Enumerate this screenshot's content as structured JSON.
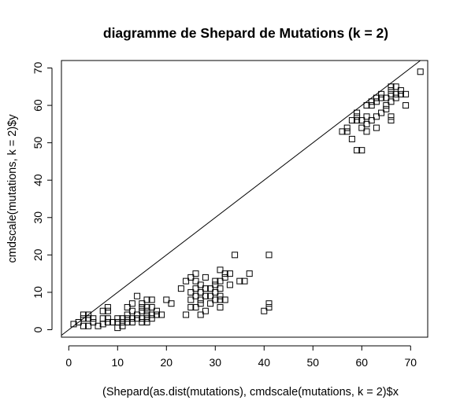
{
  "chart_data": {
    "type": "scatter",
    "title": "diagramme de Shepard de Mutations (k = 2)",
    "xlabel": "(Shepard(as.dist(mutations), cmdscale(mutations, k = 2)$x",
    "ylabel": "cmdscale(mutations, k = 2)$y",
    "xlim": [
      -1.5,
      73.5
    ],
    "ylim": [
      -2,
      72
    ],
    "x_ticks": [
      0,
      10,
      20,
      30,
      40,
      50,
      60,
      70
    ],
    "y_ticks": [
      0,
      10,
      20,
      30,
      40,
      50,
      60,
      70
    ],
    "x_tick_labels": [
      "0",
      "10",
      "20",
      "30",
      "40",
      "50",
      "60",
      "70"
    ],
    "y_tick_labels": [
      "0",
      "10",
      "20",
      "30",
      "40",
      "50",
      "60",
      "70"
    ],
    "grid": false,
    "marker": "open-square",
    "reference_line": {
      "type": "identity",
      "slope": 1,
      "intercept": 0
    },
    "points": [
      [
        1,
        1.5
      ],
      [
        2,
        2
      ],
      [
        3,
        1
      ],
      [
        3,
        3
      ],
      [
        3,
        4
      ],
      [
        4,
        1
      ],
      [
        4,
        3
      ],
      [
        4,
        4
      ],
      [
        5,
        2
      ],
      [
        5,
        3
      ],
      [
        6,
        1
      ],
      [
        7,
        1.5
      ],
      [
        7,
        3
      ],
      [
        7,
        5
      ],
      [
        8,
        2
      ],
      [
        8,
        3
      ],
      [
        8,
        5
      ],
      [
        8,
        6
      ],
      [
        9,
        2
      ],
      [
        10,
        0.5
      ],
      [
        10,
        2
      ],
      [
        10,
        3
      ],
      [
        11,
        1
      ],
      [
        11,
        2
      ],
      [
        11,
        3
      ],
      [
        12,
        2
      ],
      [
        12,
        3
      ],
      [
        12,
        4
      ],
      [
        12,
        6
      ],
      [
        13,
        2
      ],
      [
        13,
        3
      ],
      [
        13,
        5
      ],
      [
        13,
        7
      ],
      [
        14,
        3
      ],
      [
        14,
        4
      ],
      [
        14,
        9
      ],
      [
        15,
        2
      ],
      [
        15,
        3
      ],
      [
        15,
        5
      ],
      [
        15,
        6
      ],
      [
        15,
        7
      ],
      [
        16,
        2
      ],
      [
        16,
        3
      ],
      [
        16,
        4
      ],
      [
        16,
        5
      ],
      [
        16,
        6
      ],
      [
        16,
        8
      ],
      [
        17,
        3
      ],
      [
        17,
        4
      ],
      [
        17,
        6
      ],
      [
        17,
        8
      ],
      [
        18,
        4
      ],
      [
        18,
        5
      ],
      [
        19,
        4
      ],
      [
        20,
        8
      ],
      [
        21,
        7
      ],
      [
        23,
        11
      ],
      [
        24,
        4
      ],
      [
        24,
        13
      ],
      [
        25,
        6
      ],
      [
        25,
        8
      ],
      [
        25,
        10
      ],
      [
        25,
        14
      ],
      [
        26,
        6
      ],
      [
        26,
        9
      ],
      [
        26,
        11
      ],
      [
        26,
        13
      ],
      [
        26,
        15
      ],
      [
        27,
        4
      ],
      [
        27,
        7
      ],
      [
        27,
        8
      ],
      [
        27,
        10
      ],
      [
        27,
        12
      ],
      [
        28,
        5
      ],
      [
        28,
        9
      ],
      [
        28,
        11
      ],
      [
        28,
        14
      ],
      [
        29,
        7
      ],
      [
        29,
        9
      ],
      [
        29,
        11
      ],
      [
        30,
        8
      ],
      [
        30,
        10
      ],
      [
        30,
        12
      ],
      [
        30,
        13
      ],
      [
        31,
        6
      ],
      [
        31,
        8
      ],
      [
        31,
        9
      ],
      [
        31,
        11
      ],
      [
        31,
        13
      ],
      [
        31,
        16
      ],
      [
        32,
        8
      ],
      [
        32,
        14
      ],
      [
        32,
        15
      ],
      [
        33,
        12
      ],
      [
        33,
        15
      ],
      [
        34,
        20
      ],
      [
        35,
        13
      ],
      [
        36,
        13
      ],
      [
        37,
        15
      ],
      [
        40,
        5
      ],
      [
        41,
        7
      ],
      [
        41,
        20
      ],
      [
        41,
        6
      ],
      [
        56,
        53
      ],
      [
        57,
        53
      ],
      [
        57,
        54
      ],
      [
        58,
        51
      ],
      [
        58,
        56
      ],
      [
        59,
        48
      ],
      [
        59,
        56
      ],
      [
        59,
        57
      ],
      [
        59,
        58
      ],
      [
        60,
        48
      ],
      [
        60,
        54
      ],
      [
        60,
        56
      ],
      [
        61,
        53
      ],
      [
        61,
        55
      ],
      [
        61,
        57
      ],
      [
        61,
        60
      ],
      [
        62,
        56
      ],
      [
        62,
        60
      ],
      [
        62,
        61
      ],
      [
        63,
        54
      ],
      [
        63,
        57
      ],
      [
        63,
        61
      ],
      [
        63,
        62
      ],
      [
        64,
        58
      ],
      [
        64,
        62
      ],
      [
        64,
        63
      ],
      [
        65,
        59
      ],
      [
        65,
        60
      ],
      [
        65,
        62
      ],
      [
        66,
        56
      ],
      [
        66,
        57
      ],
      [
        66,
        61
      ],
      [
        66,
        63
      ],
      [
        66,
        64
      ],
      [
        66,
        65
      ],
      [
        67,
        62
      ],
      [
        67,
        63
      ],
      [
        67,
        65
      ],
      [
        68,
        63
      ],
      [
        68,
        64
      ],
      [
        69,
        60
      ],
      [
        69,
        63
      ],
      [
        72,
        69
      ]
    ]
  }
}
